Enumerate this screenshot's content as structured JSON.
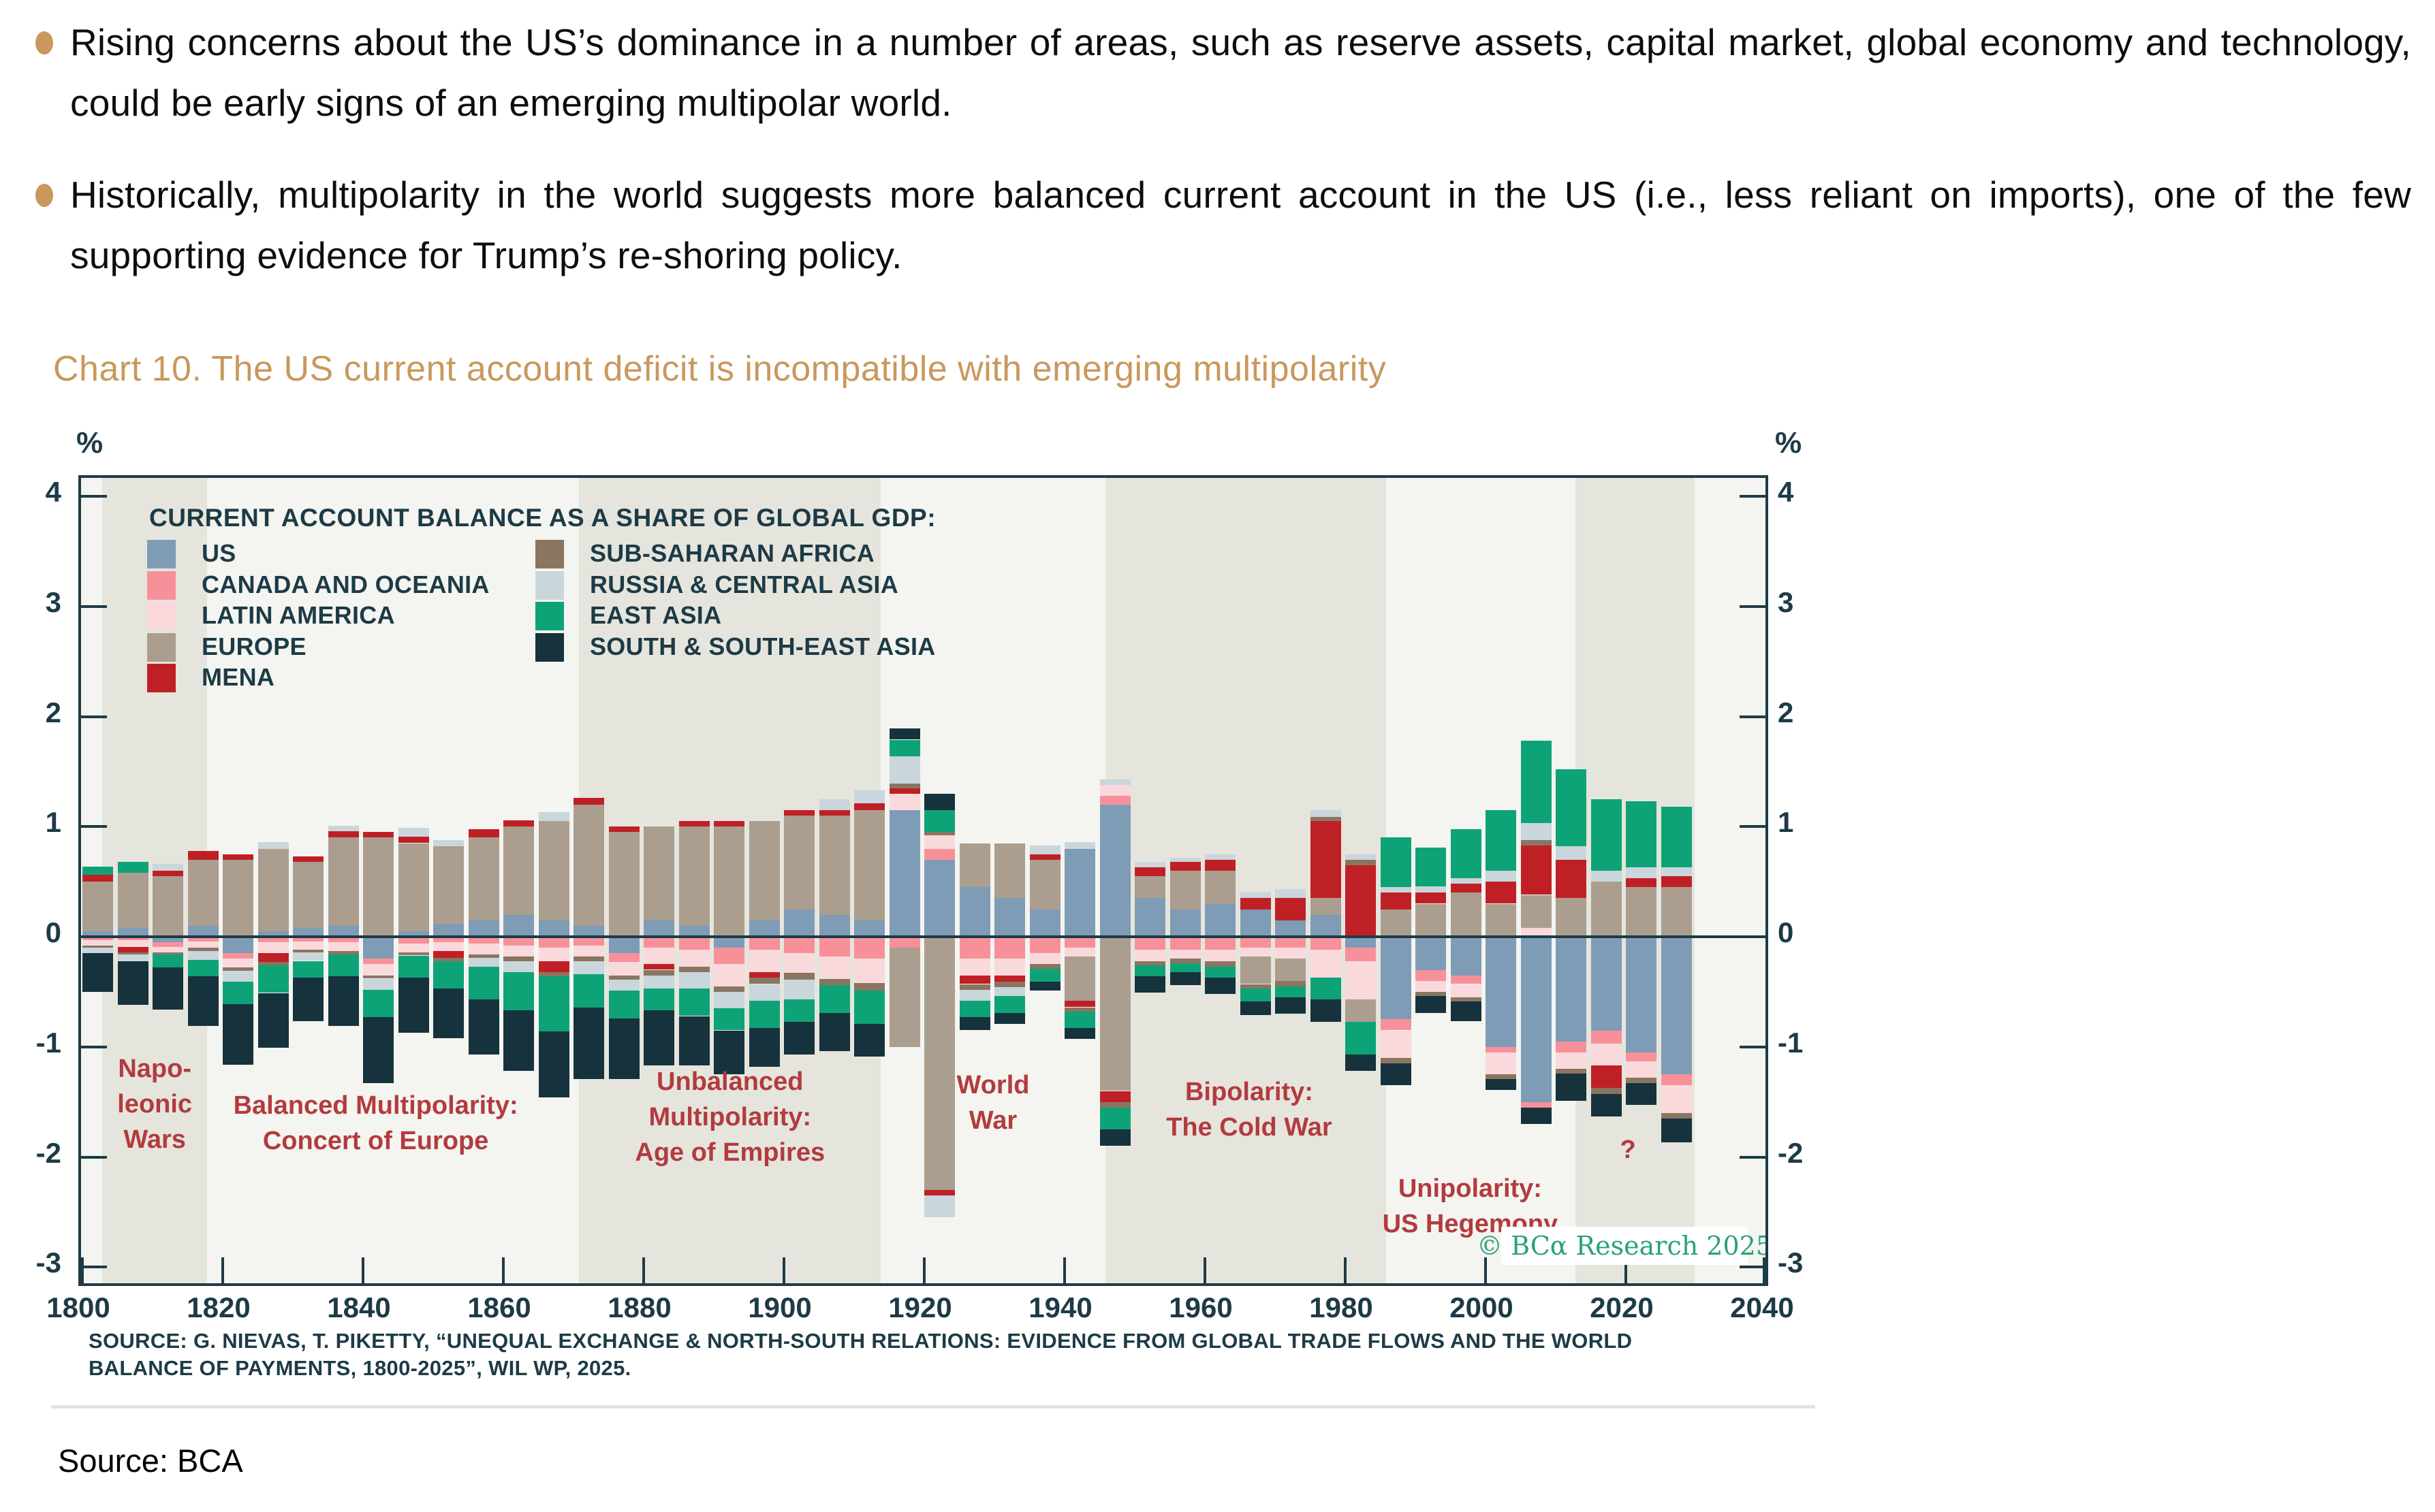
{
  "colors": {
    "gold": "#c9985c",
    "teal": "#1d3b46",
    "era_red": "#b23b3e",
    "band_grey": "#e6e5dd",
    "plot_light": "#f4f4f0",
    "tag_green": "#2aa17b",
    "divider": "#e4e3da"
  },
  "bullets": [
    {
      "text": "Rising concerns about the US’s dominance in a number of areas, such as reserve assets, capital market, global economy and technology, could be early signs of an emerging multipolar world."
    },
    {
      "text": "Historically, multipolarity in the world suggests more balanced current account in the US (i.e., less reliant on imports), one of the few supporting evidence for Trump’s re-shoring policy."
    }
  ],
  "chart_title": "Chart 10. The US current account deficit is incompatible with emerging multipolarity",
  "source_bca": "Source: BCA",
  "chart_data": {
    "type": "bar",
    "stacked": true,
    "title": "CURRENT ACCOUNT BALANCE AS A SHARE OF GLOBAL GDP:",
    "xlabel": "",
    "ylabel": "%",
    "unit_label": "%",
    "xlim": [
      1800,
      2040
    ],
    "ylim": [
      -3.15,
      4.17
    ],
    "x_ticks": [
      1800,
      1820,
      1840,
      1860,
      1880,
      1900,
      1920,
      1940,
      1960,
      1980,
      2000,
      2020,
      2040
    ],
    "y_ticks": [
      4,
      3,
      2,
      1,
      0,
      -1,
      -2,
      -3
    ],
    "grid": false,
    "legend_position": "top-left-inside",
    "years": [
      1800,
      1805,
      1810,
      1815,
      1820,
      1825,
      1830,
      1835,
      1840,
      1845,
      1850,
      1855,
      1860,
      1865,
      1870,
      1875,
      1880,
      1885,
      1890,
      1895,
      1900,
      1905,
      1910,
      1915,
      1920,
      1925,
      1930,
      1935,
      1940,
      1945,
      1950,
      1955,
      1960,
      1965,
      1970,
      1975,
      1980,
      1985,
      1990,
      1995,
      2000,
      2005,
      2010,
      2015,
      2020,
      2025
    ],
    "series": [
      {
        "name": "US",
        "color": "#7e9cb6",
        "values": [
          0.05,
          0.08,
          -0.05,
          0.1,
          -0.15,
          0.05,
          0.08,
          0.1,
          -0.2,
          0.05,
          0.12,
          0.15,
          0.2,
          0.15,
          0.1,
          -0.15,
          0.15,
          0.1,
          -0.1,
          0.15,
          0.25,
          0.2,
          0.15,
          1.15,
          0.7,
          0.45,
          0.35,
          0.25,
          0.8,
          1.2,
          0.35,
          0.25,
          0.3,
          0.25,
          0.15,
          0.2,
          -0.1,
          -0.75,
          -0.3,
          -0.35,
          -1.0,
          -1.5,
          -0.95,
          -0.85,
          -1.05,
          -1.25
        ]
      },
      {
        "name": "CANADA AND OCEANIA",
        "color": "#f8909a",
        "values": [
          -0.03,
          -0.03,
          -0.04,
          -0.04,
          -0.05,
          -0.05,
          -0.04,
          -0.05,
          -0.05,
          -0.06,
          -0.05,
          -0.06,
          -0.08,
          -0.1,
          -0.08,
          -0.08,
          -0.1,
          -0.12,
          -0.15,
          -0.12,
          -0.15,
          -0.18,
          -0.2,
          -0.1,
          0.1,
          -0.2,
          -0.2,
          -0.15,
          -0.1,
          0.08,
          -0.12,
          -0.12,
          -0.12,
          -0.1,
          -0.1,
          -0.12,
          -0.12,
          -0.1,
          -0.1,
          -0.08,
          -0.05,
          -0.05,
          -0.1,
          -0.12,
          -0.08,
          -0.1
        ]
      },
      {
        "name": "LATIN AMERICA",
        "color": "#fad9dc",
        "values": [
          -0.05,
          -0.06,
          -0.05,
          -0.06,
          -0.08,
          -0.1,
          -0.08,
          -0.08,
          -0.1,
          -0.08,
          -0.08,
          -0.1,
          -0.1,
          -0.12,
          -0.1,
          -0.12,
          -0.15,
          -0.15,
          -0.2,
          -0.2,
          -0.18,
          -0.2,
          -0.22,
          0.15,
          0.12,
          -0.15,
          -0.15,
          -0.1,
          -0.08,
          0.1,
          -0.1,
          -0.08,
          -0.1,
          -0.08,
          -0.1,
          -0.25,
          -0.35,
          -0.25,
          -0.1,
          -0.12,
          -0.2,
          0.08,
          -0.15,
          -0.2,
          -0.15,
          -0.25
        ]
      },
      {
        "name": "EUROPE",
        "color": "#ab9e8f",
        "values": [
          0.45,
          0.5,
          0.55,
          0.6,
          0.7,
          0.75,
          0.6,
          0.8,
          0.9,
          0.8,
          0.7,
          0.75,
          0.8,
          0.9,
          1.1,
          0.95,
          0.85,
          0.9,
          1.0,
          0.9,
          0.85,
          0.9,
          1.0,
          -0.9,
          -2.3,
          0.4,
          0.5,
          0.45,
          -0.4,
          -1.4,
          0.2,
          0.35,
          0.3,
          -0.25,
          -0.2,
          0.15,
          -0.2,
          0.25,
          0.3,
          0.4,
          0.3,
          0.3,
          0.35,
          0.5,
          0.45,
          0.45
        ]
      },
      {
        "name": "MENA",
        "color": "#bf2026",
        "values": [
          0.06,
          -0.05,
          0.05,
          0.08,
          0.05,
          -0.08,
          0.05,
          0.06,
          0.05,
          0.06,
          -0.06,
          0.08,
          0.06,
          -0.1,
          0.06,
          0.05,
          -0.05,
          0.05,
          0.05,
          -0.05,
          0.05,
          0.05,
          0.06,
          0.05,
          -0.05,
          -0.08,
          -0.06,
          0.05,
          -0.06,
          -0.1,
          0.08,
          0.08,
          0.1,
          0.1,
          0.2,
          0.7,
          0.65,
          0.15,
          0.1,
          0.08,
          0.2,
          0.45,
          0.35,
          -0.2,
          0.08,
          0.1
        ]
      },
      {
        "name": "SUB-SAHARAN AFRICA",
        "color": "#8a7561",
        "values": [
          -0.02,
          -0.02,
          -0.02,
          -0.03,
          -0.03,
          -0.03,
          -0.02,
          -0.03,
          -0.03,
          -0.03,
          -0.03,
          -0.03,
          -0.04,
          -0.04,
          -0.04,
          -0.04,
          -0.05,
          -0.05,
          -0.05,
          -0.06,
          -0.06,
          -0.06,
          -0.07,
          0.04,
          0.03,
          -0.05,
          -0.05,
          -0.04,
          -0.04,
          -0.05,
          -0.04,
          -0.04,
          -0.05,
          -0.04,
          -0.05,
          0.04,
          0.05,
          -0.05,
          -0.04,
          -0.04,
          -0.04,
          0.05,
          -0.04,
          -0.06,
          -0.05,
          -0.05
        ]
      },
      {
        "name": "RUSSIA & CENTRAL ASIA",
        "color": "#c9d6dc",
        "values": [
          -0.05,
          -0.06,
          0.06,
          -0.08,
          -0.1,
          0.06,
          -0.08,
          0.05,
          -0.1,
          0.08,
          0.06,
          -0.08,
          -0.1,
          0.08,
          -0.12,
          -0.1,
          -0.12,
          -0.15,
          -0.15,
          -0.15,
          -0.18,
          0.1,
          0.12,
          0.25,
          -0.2,
          -0.1,
          -0.08,
          0.08,
          0.06,
          0.05,
          0.05,
          0.04,
          0.05,
          0.06,
          0.08,
          0.06,
          0.05,
          0.05,
          0.06,
          0.05,
          0.1,
          0.15,
          0.12,
          0.1,
          0.1,
          0.08
        ]
      },
      {
        "name": "EAST ASIA",
        "color": "#0ea377",
        "values": [
          0.08,
          0.1,
          -0.12,
          -0.15,
          -0.2,
          -0.25,
          -0.15,
          -0.2,
          -0.25,
          -0.2,
          -0.25,
          -0.3,
          -0.35,
          -0.5,
          -0.3,
          -0.25,
          -0.2,
          -0.25,
          -0.2,
          -0.25,
          -0.2,
          -0.25,
          -0.3,
          0.15,
          0.2,
          -0.15,
          -0.15,
          -0.12,
          -0.15,
          -0.2,
          -0.1,
          -0.08,
          -0.1,
          -0.12,
          -0.1,
          -0.2,
          -0.3,
          0.45,
          0.35,
          0.45,
          0.55,
          0.75,
          0.7,
          0.65,
          0.6,
          0.55
        ]
      },
      {
        "name": "SOUTH & SOUTH-EAST ASIA",
        "color": "#15323d",
        "values": [
          -0.35,
          -0.4,
          -0.38,
          -0.45,
          -0.55,
          -0.5,
          -0.4,
          -0.45,
          -0.6,
          -0.5,
          -0.45,
          -0.5,
          -0.55,
          -0.6,
          -0.65,
          -0.55,
          -0.5,
          -0.45,
          -0.4,
          -0.35,
          -0.3,
          -0.35,
          -0.3,
          0.1,
          0.15,
          -0.12,
          -0.1,
          -0.08,
          -0.1,
          -0.15,
          -0.15,
          -0.12,
          -0.15,
          -0.12,
          -0.15,
          -0.2,
          -0.15,
          -0.2,
          -0.15,
          -0.18,
          -0.1,
          -0.15,
          -0.25,
          -0.2,
          -0.2,
          -0.22
        ]
      }
    ],
    "eras": [
      {
        "lines": [
          "Napo-",
          "leonic",
          "Wars"
        ],
        "center_year": 1810.5,
        "label_top": 842,
        "band": [
          1803,
          1818
        ]
      },
      {
        "lines": [
          "Balanced Multipolarity:",
          "Concert of Europe"
        ],
        "center_year": 1842,
        "label_top": 896,
        "band": null
      },
      {
        "lines": [
          "Unbalanced",
          "Multipolarity:",
          "Age of Empires"
        ],
        "center_year": 1892.5,
        "label_top": 861,
        "band": [
          1871,
          1914
        ]
      },
      {
        "lines": [
          "World",
          "War"
        ],
        "center_year": 1930,
        "label_top": 866,
        "band": null
      },
      {
        "lines": [
          "Bipolarity:",
          "The Cold War"
        ],
        "center_year": 1966.5,
        "label_top": 876,
        "band": [
          1946,
          1986
        ]
      },
      {
        "lines": [
          "Unipolarity:",
          "US Hegemony"
        ],
        "center_year": 1998,
        "label_top": 1018,
        "band": null
      },
      {
        "lines": [
          "?"
        ],
        "center_year": 2020.5,
        "label_top": 961,
        "band": [
          2013,
          2030
        ]
      }
    ],
    "copyright": "© BCα Research 2025",
    "source_lines": [
      "SOURCE: G. NIEVAS, T. PIKETTY, “UNEQUAL EXCHANGE & NORTH-SOUTH RELATIONS: EVIDENCE FROM GLOBAL TRADE FLOWS AND THE WORLD",
      "BALANCE OF PAYMENTS, 1800-2025”, WIL WP, 2025."
    ]
  }
}
